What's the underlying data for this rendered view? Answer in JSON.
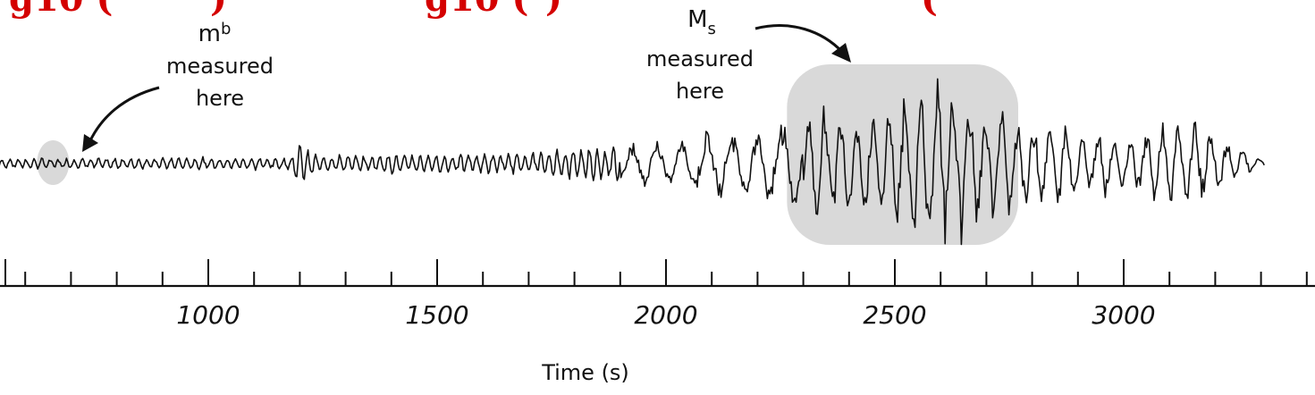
{
  "header_fragments": [
    "g10 (",
    ")",
    "g10 (",
    ")",
    "("
  ],
  "chart_data": {
    "type": "line",
    "title": "",
    "xlabel": "Time (s)",
    "ylabel": "",
    "xlim": [
      550,
      3300
    ],
    "x_ticks_major": [
      1000,
      1500,
      2000,
      2500,
      3000
    ],
    "x_tick_labels": [
      "1000",
      "1500",
      "2000",
      "2500",
      "3000"
    ],
    "x_minor_step": 100,
    "grid": false,
    "legend": "none",
    "series": [
      {
        "trace_start": 600,
        "trace_end": 3300,
        "envelope": [
          {
            "x": 600,
            "amp": 6
          },
          {
            "x": 1180,
            "amp": 7
          },
          {
            "x": 1200,
            "amp": 24
          },
          {
            "x": 1240,
            "amp": 9
          },
          {
            "x": 1700,
            "amp": 12
          },
          {
            "x": 1950,
            "amp": 22
          },
          {
            "x": 2200,
            "amp": 38
          },
          {
            "x": 2350,
            "amp": 62
          },
          {
            "x": 2450,
            "amp": 50
          },
          {
            "x": 2600,
            "amp": 90
          },
          {
            "x": 2700,
            "amp": 55
          },
          {
            "x": 2850,
            "amp": 45
          },
          {
            "x": 3000,
            "amp": 28
          },
          {
            "x": 3150,
            "amp": 50
          },
          {
            "x": 3300,
            "amp": 4
          }
        ]
      }
    ],
    "highlights": [
      {
        "label": "mb",
        "x_center": 655,
        "kind": "small-ellipse"
      },
      {
        "label": "Ms",
        "x_from": 2280,
        "x_to": 2750,
        "kind": "rounded-box"
      }
    ],
    "annotations": [
      {
        "main": "m",
        "sub": "b",
        "lines": [
          "measured",
          "here"
        ]
      },
      {
        "main": "M",
        "sub": "s",
        "lines": [
          "measured",
          "here"
        ]
      }
    ]
  },
  "colors": {
    "trace": "#111111",
    "highlight_fill": "#d9d9d9",
    "clipped_text": "#d40000"
  }
}
